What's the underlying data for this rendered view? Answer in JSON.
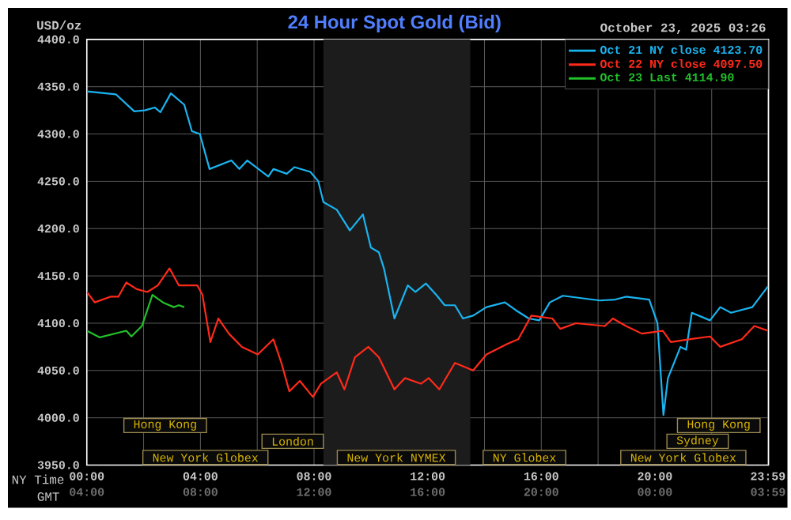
{
  "chart_data": {
    "type": "line",
    "title": "24 Hour Spot Gold (Bid)",
    "subtitle": "October 23, 2025 03:26",
    "ylabel": "USD/oz",
    "xlabel": "NY Time",
    "x2label": "GMT",
    "xlim": [
      0,
      24
    ],
    "ylim": [
      3950,
      4400
    ],
    "x2lim": [
      "2025-10-23T04:00",
      "2025-10-24T04:00"
    ],
    "xticks": [
      {
        "value": 0,
        "label": "00:00"
      },
      {
        "value": 2,
        "label": null
      },
      {
        "value": 4,
        "label": "04:00"
      },
      {
        "value": 6,
        "label": null
      },
      {
        "value": 8,
        "label": "08:00"
      },
      {
        "value": 10,
        "label": null
      },
      {
        "value": 12,
        "label": "12:00"
      },
      {
        "value": 14,
        "label": null
      },
      {
        "value": 16,
        "label": "16:00"
      },
      {
        "value": 18,
        "label": null
      },
      {
        "value": 20,
        "label": "20:00"
      },
      {
        "value": 22,
        "label": null
      },
      {
        "value": 23.98,
        "label": "23:59"
      }
    ],
    "x2ticks": [
      {
        "value": "2025-10-23T04:00",
        "label": "04:00"
      },
      {
        "value": "2025-10-23T08:00",
        "label": "08:00"
      },
      {
        "value": "2025-10-23T12:00",
        "label": "12:00"
      },
      {
        "value": "2025-10-23T16:00",
        "label": "16:00"
      },
      {
        "value": "2025-10-23T20:00",
        "label": "20:00"
      },
      {
        "value": "2025-10-24T00:00",
        "label": "00:00"
      },
      {
        "value": "2025-10-24T03:59",
        "label": "03:59"
      }
    ],
    "yticks": [
      {
        "value": 3950,
        "label": "3950.0"
      },
      {
        "value": 4000,
        "label": "4000.0"
      },
      {
        "value": 4050,
        "label": "4050.0"
      },
      {
        "value": 4100,
        "label": "4100.0"
      },
      {
        "value": 4150,
        "label": "4150.0"
      },
      {
        "value": 4200,
        "label": "4200.0"
      },
      {
        "value": 4250,
        "label": "4250.0"
      },
      {
        "value": 4300,
        "label": "4300.0"
      },
      {
        "value": 4350,
        "label": "4350.0"
      },
      {
        "value": 4400,
        "label": "4400.0"
      }
    ],
    "grid": true,
    "legend": "top right",
    "bands": [
      {
        "axis": "x",
        "from": 8.33,
        "to": 13.5,
        "color": "#1c1c1c"
      }
    ],
    "annotations": [
      "Hong Kong",
      "Hong Kong",
      "London",
      "Sydney",
      "New York Globex",
      "New York NYMEX",
      "NY Globex",
      "New York Globex"
    ],
    "series": [
      {
        "name": "Oct 21 NY close 4123.70",
        "color": "#1ab4f0",
        "x": [
          0,
          1.02,
          1.67,
          2.04,
          2.4,
          2.59,
          2.96,
          3.43,
          3.7,
          3.98,
          4.32,
          5.09,
          5.37,
          5.65,
          6.39,
          6.57,
          7.04,
          7.31,
          7.87,
          8.15,
          8.33,
          8.8,
          9.26,
          9.72,
          10,
          10.28,
          10.46,
          10.83,
          11.3,
          11.57,
          11.94,
          12.3,
          12.6,
          12.96,
          13.24,
          13.6,
          14.07,
          14.72,
          15.09,
          15.56,
          15.93,
          16.3,
          16.76,
          18.06,
          18.6,
          18.98,
          19.8,
          20.09,
          20.3,
          20.46,
          20.9,
          21.1,
          21.3,
          21.94,
          22.3,
          22.68,
          23.43,
          23.98
        ],
        "values": [
          4345,
          4342,
          4324,
          4325,
          4328,
          4323,
          4343,
          4331,
          4303,
          4300,
          4263,
          4272,
          4263,
          4272,
          4255,
          4263,
          4258,
          4265,
          4260,
          4250,
          4228,
          4220,
          4198,
          4215,
          4180,
          4175,
          4158,
          4105,
          4140,
          4133,
          4142,
          4130,
          4119,
          4119,
          4105,
          4108,
          4117,
          4122,
          4114,
          4105,
          4103,
          4122,
          4129,
          4124,
          4125,
          4128,
          4125,
          4100,
          4003,
          4042,
          4075,
          4072,
          4111,
          4103,
          4117,
          4111,
          4117,
          4139
        ]
      },
      {
        "name": "Oct 22 NY close 4097.50",
        "color": "#ff2a1a",
        "x": [
          0,
          0.28,
          0.83,
          1.11,
          1.39,
          1.76,
          2.13,
          2.5,
          2.91,
          3.24,
          3.89,
          4.07,
          4.35,
          4.63,
          5,
          5.46,
          6.02,
          6.57,
          6.85,
          7.13,
          7.5,
          7.96,
          8.24,
          8.8,
          9.07,
          9.44,
          9.91,
          10.28,
          10.83,
          11.2,
          11.76,
          12.04,
          12.41,
          12.96,
          13.6,
          14.07,
          14.8,
          15.19,
          15.65,
          16.39,
          16.67,
          17.22,
          18.24,
          18.52,
          18.98,
          19.54,
          20.28,
          20.56,
          21.2,
          21.94,
          22.3,
          23.06,
          23.5,
          23.98
        ],
        "values": [
          4133,
          4122,
          4128,
          4128,
          4143,
          4136,
          4133,
          4140,
          4158,
          4140,
          4140,
          4130,
          4080,
          4105,
          4089,
          4075,
          4067,
          4083,
          4058,
          4028,
          4039,
          4022,
          4036,
          4048,
          4030,
          4064,
          4075,
          4064,
          4030,
          4042,
          4036,
          4042,
          4030,
          4058,
          4050,
          4067,
          4078,
          4083,
          4108,
          4105,
          4094,
          4100,
          4097,
          4105,
          4097,
          4089,
          4092,
          4080,
          4083,
          4086,
          4075,
          4083,
          4097,
          4092
        ]
      },
      {
        "name": "Oct 23 Last 4114.90",
        "color": "#22c02a",
        "x": [
          0,
          0.46,
          1.39,
          1.57,
          1.94,
          2.31,
          2.68,
          3.06,
          3.24,
          3.43
        ],
        "values": [
          4092,
          4085,
          4092,
          4086,
          4097,
          4130,
          4122,
          4117,
          4119,
          4117
        ]
      }
    ]
  }
}
